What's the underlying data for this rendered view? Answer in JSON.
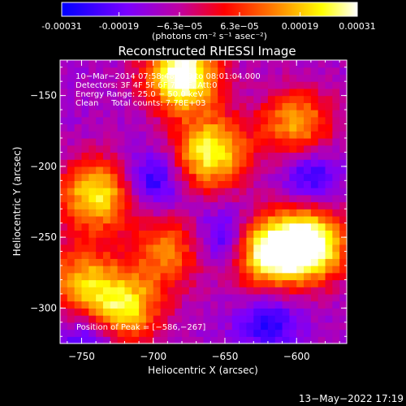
{
  "chart_data": {
    "type": "heatmap",
    "title": "Reconstructed RHESSI Image",
    "xlabel": "Heliocentric X (arcsec)",
    "ylabel": "Heliocentric Y (arcsec)",
    "xlim": [
      -765,
      -565
    ],
    "ylim": [
      -325,
      -125
    ],
    "x_ticks": [
      -750,
      -700,
      -650,
      -600
    ],
    "x_tick_labels": [
      "−750",
      "−700",
      "−650",
      "−600"
    ],
    "y_ticks": [
      -150,
      -200,
      -250,
      -300
    ],
    "y_tick_labels": [
      "−150",
      "−200",
      "−250",
      "−300"
    ],
    "colorbar": {
      "range": [
        -0.00031,
        0.00031
      ],
      "ticks": [
        -0.00031,
        -0.00019,
        -6.3e-05,
        6.3e-05,
        0.00019,
        0.00031
      ],
      "tick_labels": [
        "-0.00031",
        "-0.00019",
        "−6.3e−05",
        "6.3e−05",
        "0.00019",
        "0.00031"
      ],
      "units": "(photons cm⁻² s⁻¹ asec⁻²)",
      "colors": [
        "#0000ff",
        "#7a00ff",
        "#c000a0",
        "#ff0000",
        "#ff8000",
        "#ffff00",
        "#ffffff"
      ]
    },
    "annotations": [
      "10−Mar−2014 07:58:48.000 to 08:01:04.000",
      "Detectors: 3F 4F 5F 6F 7F 8F, Att:0",
      "Energy Range: 25.0 − 50.0 keV",
      "Clean     Total counts: 7.78E+03"
    ],
    "peak_label": "Position of Peak = [−586,−267]",
    "peak": [
      -586,
      -267
    ],
    "hotspots": [
      {
        "x": -680,
        "y": -135,
        "intensity": 1.0
      },
      {
        "x": -740,
        "y": -220,
        "intensity": 0.75
      },
      {
        "x": -660,
        "y": -190,
        "intensity": 0.8
      },
      {
        "x": -590,
        "y": -255,
        "intensity": 0.95
      },
      {
        "x": -620,
        "y": -260,
        "intensity": 0.85
      },
      {
        "x": -720,
        "y": -300,
        "intensity": 0.7
      },
      {
        "x": -600,
        "y": -170,
        "intensity": 0.6
      },
      {
        "x": -690,
        "y": -260,
        "intensity": 0.5
      },
      {
        "x": -750,
        "y": -280,
        "intensity": 0.55
      }
    ],
    "coldspots": [
      {
        "x": -650,
        "y": -250
      },
      {
        "x": -700,
        "y": -210
      },
      {
        "x": -620,
        "y": -310
      },
      {
        "x": -745,
        "y": -325
      },
      {
        "x": -590,
        "y": -205
      }
    ]
  },
  "footer_timestamp": "13−May−2022 17:19"
}
